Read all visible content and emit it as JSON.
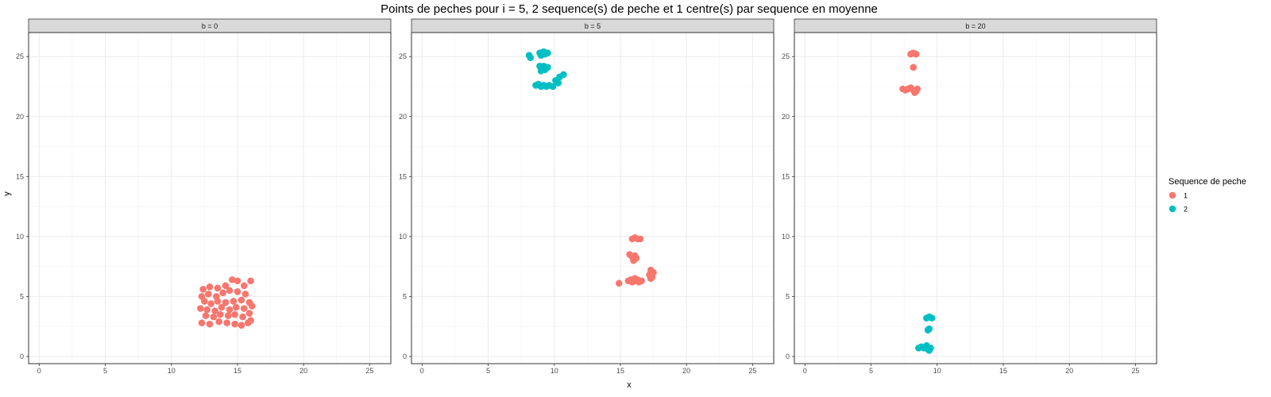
{
  "chart_data": {
    "type": "scatter",
    "title": "Points de peches pour i = 5, 2 sequence(s) de peche et 1 centre(s) par sequence en moyenne",
    "xlabel": "x",
    "ylabel": "y",
    "xlim": [
      -0.8,
      26.6
    ],
    "ylim": [
      -0.6,
      27.0
    ],
    "xticks": [
      0,
      5,
      10,
      15,
      20,
      25
    ],
    "yticks": [
      0,
      5,
      10,
      15,
      20,
      25
    ],
    "grid": true,
    "colors": {
      "1": "#F8766D",
      "2": "#00BFC4"
    },
    "legend": {
      "title": "Sequence de peche",
      "position": "right",
      "entries": [
        "1",
        "2"
      ]
    },
    "facets": [
      {
        "label": "b = 0",
        "series": [
          {
            "name": "1",
            "points": [
              [
                12.4,
                5.6
              ],
              [
                12.9,
                5.8
              ],
              [
                13.5,
                5.7
              ],
              [
                14.1,
                5.9
              ],
              [
                14.6,
                6.4
              ],
              [
                15.0,
                6.3
              ],
              [
                15.5,
                5.9
              ],
              [
                16.0,
                6.3
              ],
              [
                12.3,
                5.0
              ],
              [
                12.8,
                5.2
              ],
              [
                13.4,
                5.0
              ],
              [
                13.9,
                5.3
              ],
              [
                14.4,
                5.5
              ],
              [
                15.0,
                5.4
              ],
              [
                15.6,
                5.2
              ],
              [
                12.5,
                4.6
              ],
              [
                13.0,
                4.4
              ],
              [
                13.5,
                4.6
              ],
              [
                14.1,
                4.5
              ],
              [
                14.7,
                4.6
              ],
              [
                15.3,
                4.7
              ],
              [
                15.9,
                4.5
              ],
              [
                12.2,
                4.0
              ],
              [
                12.7,
                3.9
              ],
              [
                13.3,
                3.8
              ],
              [
                13.8,
                4.1
              ],
              [
                14.4,
                3.9
              ],
              [
                14.9,
                4.1
              ],
              [
                15.5,
                4.0
              ],
              [
                16.1,
                4.2
              ],
              [
                12.6,
                3.4
              ],
              [
                13.2,
                3.3
              ],
              [
                13.7,
                3.5
              ],
              [
                14.3,
                3.4
              ],
              [
                14.8,
                3.5
              ],
              [
                15.4,
                3.3
              ],
              [
                15.9,
                3.6
              ],
              [
                12.3,
                2.8
              ],
              [
                12.9,
                2.7
              ],
              [
                13.6,
                2.9
              ],
              [
                14.2,
                2.8
              ],
              [
                14.8,
                2.7
              ],
              [
                15.3,
                2.6
              ],
              [
                15.8,
                2.8
              ],
              [
                16.0,
                3.0
              ]
            ]
          }
        ]
      },
      {
        "label": "b = 5",
        "series": [
          {
            "name": "1",
            "points": [
              [
                15.9,
                9.8
              ],
              [
                16.1,
                9.9
              ],
              [
                16.3,
                9.8
              ],
              [
                16.5,
                9.8
              ],
              [
                15.7,
                8.5
              ],
              [
                15.9,
                8.3
              ],
              [
                16.1,
                8.4
              ],
              [
                16.2,
                8.2
              ],
              [
                16.0,
                8.0
              ],
              [
                17.3,
                7.2
              ],
              [
                17.5,
                7.0
              ],
              [
                17.2,
                6.8
              ],
              [
                17.4,
                6.6
              ],
              [
                17.3,
                6.5
              ],
              [
                14.9,
                6.1
              ],
              [
                15.6,
                6.3
              ],
              [
                15.8,
                6.4
              ],
              [
                16.0,
                6.3
              ],
              [
                16.2,
                6.3
              ],
              [
                16.4,
                6.2
              ],
              [
                16.6,
                6.3
              ],
              [
                15.9,
                6.2
              ],
              [
                16.1,
                6.5
              ],
              [
                16.3,
                6.4
              ]
            ]
          },
          {
            "name": "2",
            "points": [
              [
                8.1,
                25.1
              ],
              [
                8.2,
                24.9
              ],
              [
                8.9,
                25.3
              ],
              [
                9.2,
                25.4
              ],
              [
                9.5,
                25.3
              ],
              [
                9.0,
                25.1
              ],
              [
                9.3,
                25.2
              ],
              [
                8.9,
                24.2
              ],
              [
                9.1,
                24.0
              ],
              [
                9.3,
                23.9
              ],
              [
                9.5,
                24.1
              ],
              [
                9.2,
                24.2
              ],
              [
                9.0,
                23.8
              ],
              [
                8.6,
                22.6
              ],
              [
                8.8,
                22.7
              ],
              [
                9.0,
                22.5
              ],
              [
                9.2,
                22.6
              ],
              [
                9.4,
                22.5
              ],
              [
                9.6,
                22.6
              ],
              [
                9.9,
                22.5
              ],
              [
                10.1,
                23.0
              ],
              [
                10.4,
                23.3
              ],
              [
                10.7,
                23.5
              ],
              [
                10.3,
                22.8
              ]
            ]
          }
        ]
      },
      {
        "label": "b = 20",
        "series": [
          {
            "name": "1",
            "points": [
              [
                8.0,
                25.2
              ],
              [
                8.2,
                25.3
              ],
              [
                8.4,
                25.2
              ],
              [
                8.2,
                24.1
              ],
              [
                7.4,
                22.3
              ],
              [
                7.6,
                22.2
              ],
              [
                7.8,
                22.3
              ],
              [
                8.0,
                22.4
              ],
              [
                8.2,
                22.2
              ],
              [
                8.4,
                22.1
              ],
              [
                8.5,
                22.3
              ],
              [
                8.3,
                22.0
              ]
            ]
          },
          {
            "name": "2",
            "points": [
              [
                9.2,
                3.2
              ],
              [
                9.4,
                3.3
              ],
              [
                9.6,
                3.2
              ],
              [
                9.3,
                2.2
              ],
              [
                9.4,
                2.3
              ],
              [
                8.6,
                0.7
              ],
              [
                8.8,
                0.8
              ],
              [
                9.0,
                0.7
              ],
              [
                9.2,
                0.9
              ],
              [
                9.3,
                0.6
              ],
              [
                9.5,
                0.7
              ],
              [
                9.4,
                0.5
              ]
            ]
          }
        ]
      }
    ]
  }
}
